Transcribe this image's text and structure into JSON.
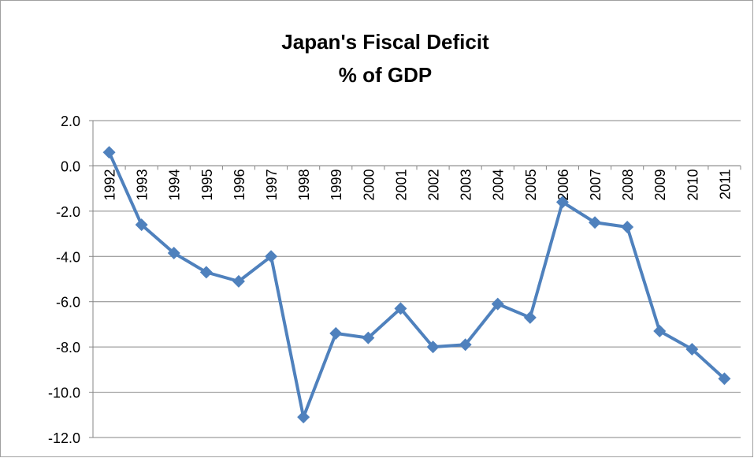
{
  "chart_data": {
    "type": "line",
    "title": "Japan's Fiscal Deficit",
    "subtitle": "% of GDP",
    "categories": [
      "1992",
      "1993",
      "1994",
      "1995",
      "1996",
      "1997",
      "1998",
      "1999",
      "2000",
      "2001",
      "2002",
      "2003",
      "2004",
      "2005",
      "2006",
      "2007",
      "2008",
      "2009",
      "2010",
      "2011"
    ],
    "values": [
      0.6,
      -2.6,
      -3.85,
      -4.7,
      -5.1,
      -4.0,
      -11.1,
      -7.4,
      -7.6,
      -6.3,
      -8.0,
      -7.9,
      -6.1,
      -6.7,
      -1.6,
      -2.5,
      -2.7,
      -7.3,
      -8.1,
      -9.4
    ],
    "color": "#4f81bd",
    "ylim": [
      -12,
      2
    ],
    "yticks": [
      {
        "value": -12,
        "label": "-12.0"
      },
      {
        "value": -10,
        "label": "-10.0"
      },
      {
        "value": -8,
        "label": "-8.0"
      },
      {
        "value": -6,
        "label": "-6.0"
      },
      {
        "value": -4,
        "label": "-4.0"
      },
      {
        "value": -2,
        "label": "-2.0"
      },
      {
        "value": 0,
        "label": "0.0"
      },
      {
        "value": 2,
        "label": "2.0"
      }
    ],
    "grid": true
  }
}
